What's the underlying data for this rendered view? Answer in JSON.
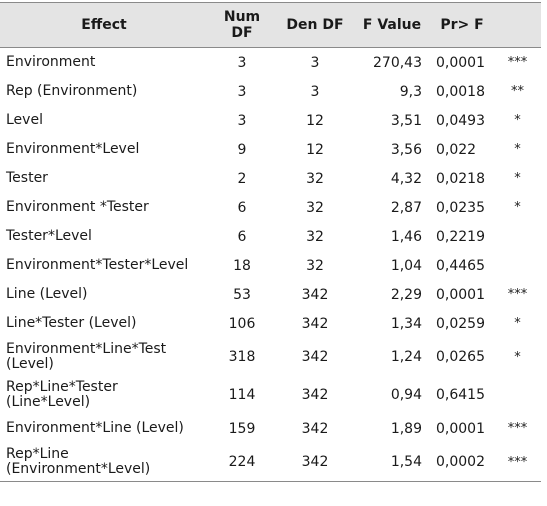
{
  "table": {
    "headers": {
      "effect": "Effect",
      "num_df": [
        "Num",
        "DF"
      ],
      "den_df": "Den DF",
      "f_value": "F Value",
      "pr_f": "Pr> F"
    },
    "rows": [
      {
        "effect": [
          "Environment"
        ],
        "num_df": "3",
        "den_df": "3",
        "f_value": "270,43",
        "p_value": "0,0001",
        "sig": "***"
      },
      {
        "effect": [
          "Rep (Environment)"
        ],
        "num_df": "3",
        "den_df": "3",
        "f_value": "9,3",
        "p_value": "0,0018",
        "sig": "**"
      },
      {
        "effect": [
          "Level"
        ],
        "num_df": "3",
        "den_df": "12",
        "f_value": "3,51",
        "p_value": "0,0493",
        "sig": "*"
      },
      {
        "effect": [
          "Environment*Level"
        ],
        "num_df": "9",
        "den_df": "12",
        "f_value": "3,56",
        "p_value": "0,022",
        "sig": "*"
      },
      {
        "effect": [
          "Tester"
        ],
        "num_df": "2",
        "den_df": "32",
        "f_value": "4,32",
        "p_value": "0,0218",
        "sig": "*"
      },
      {
        "effect": [
          "Environment *Tester"
        ],
        "num_df": "6",
        "den_df": "32",
        "f_value": "2,87",
        "p_value": "0,0235",
        "sig": "*"
      },
      {
        "effect": [
          "Tester*Level"
        ],
        "num_df": "6",
        "den_df": "32",
        "f_value": "1,46",
        "p_value": "0,2219",
        "sig": ""
      },
      {
        "effect": [
          "Environment*Tester*Level"
        ],
        "num_df": "18",
        "den_df": "32",
        "f_value": "1,04",
        "p_value": "0,4465",
        "sig": ""
      },
      {
        "effect": [
          "Line (Level)"
        ],
        "num_df": "53",
        "den_df": "342",
        "f_value": "2,29",
        "p_value": "0,0001",
        "sig": "***"
      },
      {
        "effect": [
          "Line*Tester (Level)"
        ],
        "num_df": "106",
        "den_df": "342",
        "f_value": "1,34",
        "p_value": "0,0259",
        "sig": "*"
      },
      {
        "effect": [
          "Environment*Line*Test",
          "(Level)"
        ],
        "num_df": "318",
        "den_df": "342",
        "f_value": "1,24",
        "p_value": "0,0265",
        "sig": "*"
      },
      {
        "effect": [
          "Rep*Line*Tester",
          "(Line*Level)"
        ],
        "num_df": "114",
        "den_df": "342",
        "f_value": "0,94",
        "p_value": "0,6415",
        "sig": ""
      },
      {
        "effect": [
          "Environment*Line (Level)"
        ],
        "num_df": "159",
        "den_df": "342",
        "f_value": "1,89",
        "p_value": "0,0001",
        "sig": "***"
      },
      {
        "effect": [
          "Rep*Line",
          "(Environment*Level)"
        ],
        "num_df": "224",
        "den_df": "342",
        "f_value": "1,54",
        "p_value": "0,0002",
        "sig": "***"
      }
    ]
  }
}
